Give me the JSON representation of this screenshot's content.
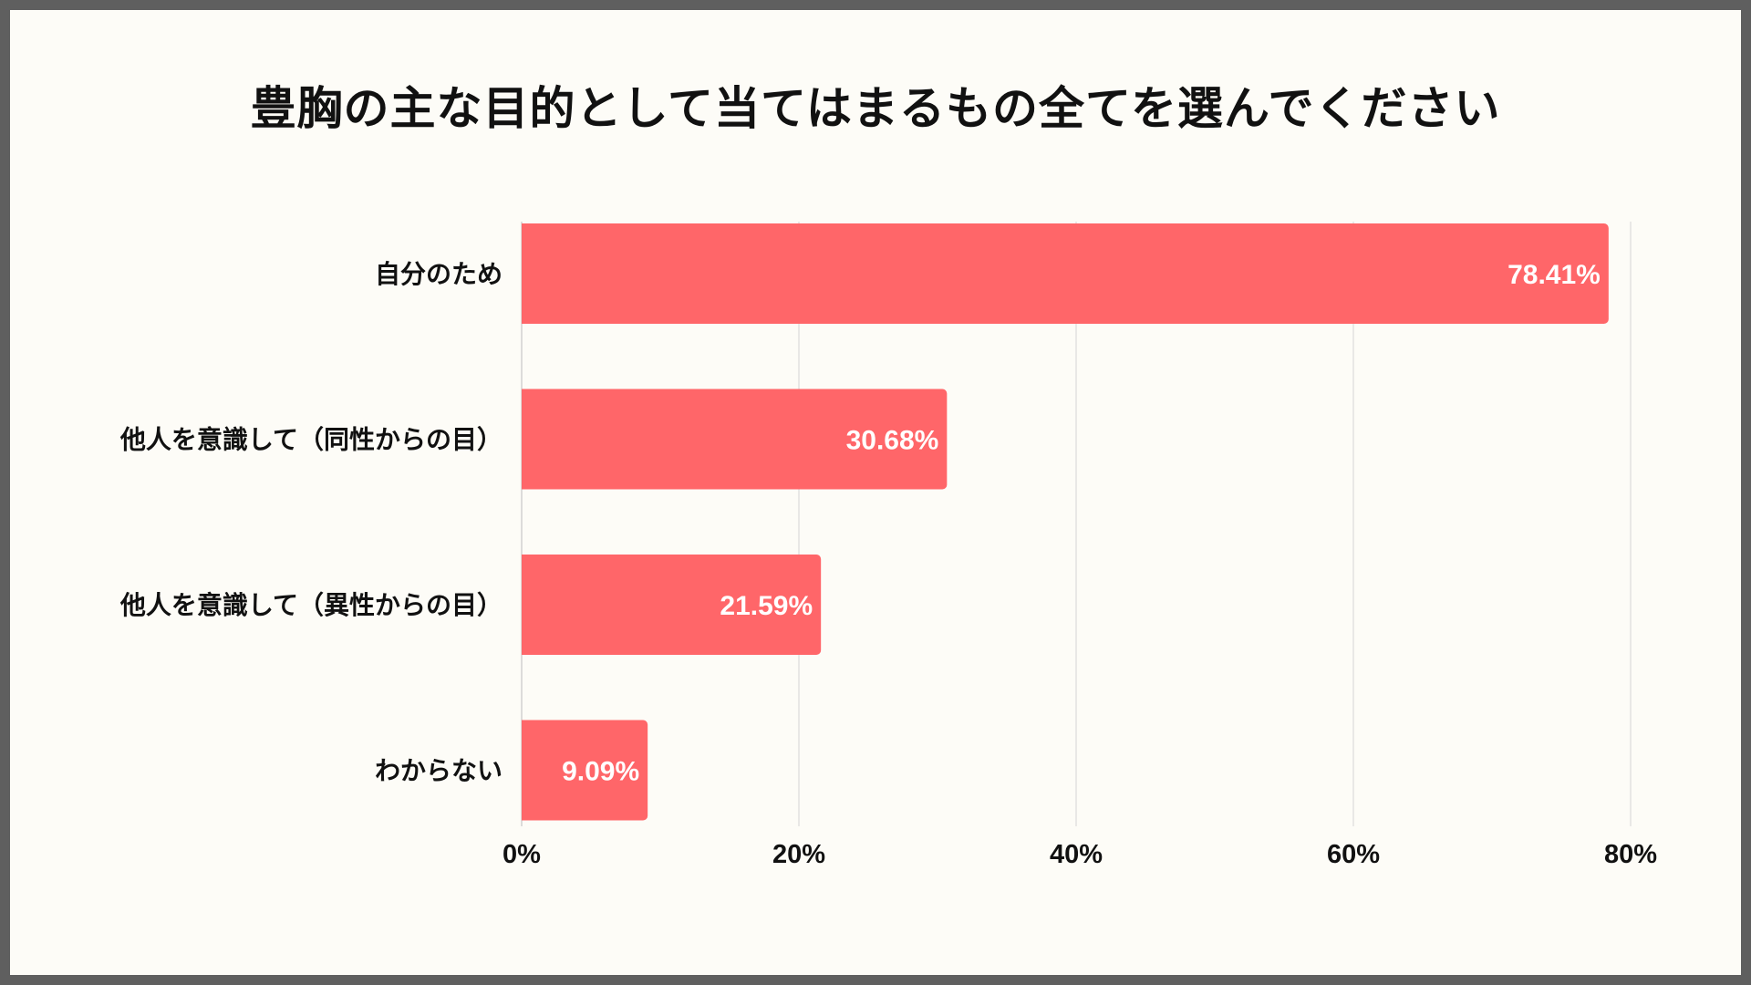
{
  "chart_data": {
    "type": "bar",
    "orientation": "horizontal",
    "title": "豊胸の主な目的として当てはまるもの全てを選んでください",
    "categories": [
      "自分のため",
      "他人を意識して（同性からの目）",
      "他人を意識して（異性からの目）",
      "わからない"
    ],
    "values": [
      78.41,
      30.68,
      21.59,
      9.09
    ],
    "value_labels": [
      "78.41%",
      "30.68%",
      "21.59%",
      "9.09%"
    ],
    "xlim": [
      0,
      80
    ],
    "x_ticks": [
      0,
      20,
      40,
      60,
      80
    ],
    "x_tick_labels": [
      "0%",
      "20%",
      "40%",
      "60%",
      "80%"
    ],
    "grid": true,
    "legend": "none",
    "bar_color": "#ff6669"
  }
}
